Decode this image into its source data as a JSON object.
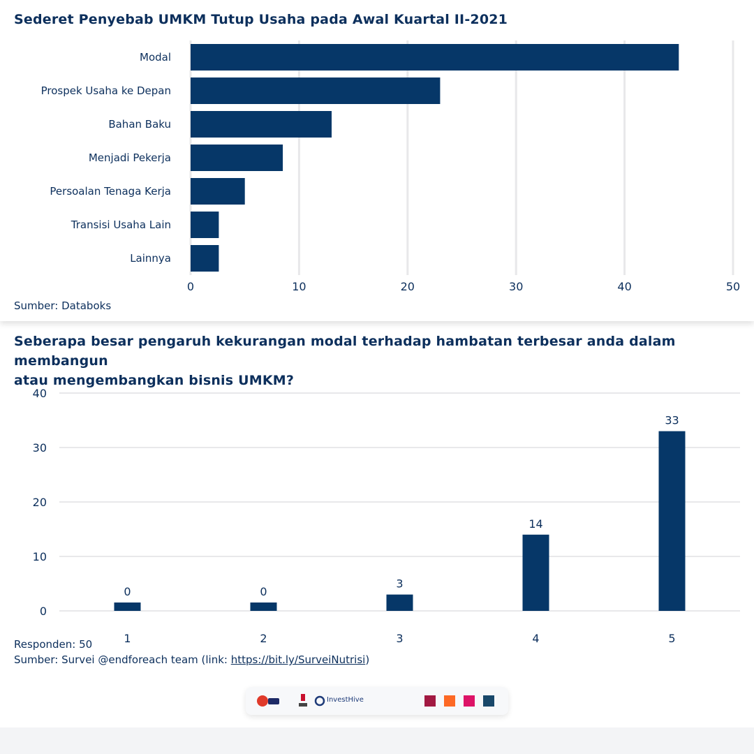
{
  "chart1": {
    "title": "Sederet Penyebab UMKM Tutup Usaha pada Awal Kuartal II-2021",
    "source": "Sumber: Databoks"
  },
  "chart2": {
    "title_line1": "Seberapa besar pengaruh kekurangan modal terhadap hambatan terbesar anda dalam membangun",
    "title_line2": "atau mengembangkan bisnis UMKM?",
    "respondents": "Responden: 50",
    "source_prefix": "Sumber: Survei @endforeach team (link: ",
    "source_link": "https://bit.ly/SurveiNutrisi",
    "source_suffix": ")"
  },
  "logos": {
    "unity": "Unity",
    "telkom": "Telkom",
    "investhive": "InvestHive"
  },
  "colors": {
    "bar": "#063768",
    "grid": "#e8e8ea",
    "text": "#0c2f5c"
  },
  "chart_data": [
    {
      "type": "bar",
      "orientation": "horizontal",
      "title": "Sederet Penyebab UMKM Tutup Usaha pada Awal Kuartal II-2021",
      "categories": [
        "Modal",
        "Prospek Usaha ke Depan",
        "Bahan Baku",
        "Menjadi Pekerja",
        "Persoalan Tenaga Kerja",
        "Transisi Usaha Lain",
        "Lainnya"
      ],
      "values": [
        45,
        23,
        13,
        8.5,
        5,
        2.6,
        2.6
      ],
      "xlim": [
        0,
        50
      ],
      "xticks": [
        0,
        10,
        20,
        30,
        40,
        50
      ],
      "grid": true
    },
    {
      "type": "bar",
      "orientation": "vertical",
      "title": "Seberapa besar pengaruh kekurangan modal terhadap hambatan terbesar anda dalam membangun atau mengembangkan bisnis UMKM?",
      "categories": [
        "1",
        "2",
        "3",
        "4",
        "5"
      ],
      "values": [
        0,
        0,
        3,
        14,
        33
      ],
      "data_labels": [
        "0",
        "0",
        "3",
        "14",
        "33"
      ],
      "ylim": [
        0,
        40
      ],
      "yticks": [
        0,
        10,
        20,
        30,
        40
      ],
      "grid": true
    }
  ]
}
